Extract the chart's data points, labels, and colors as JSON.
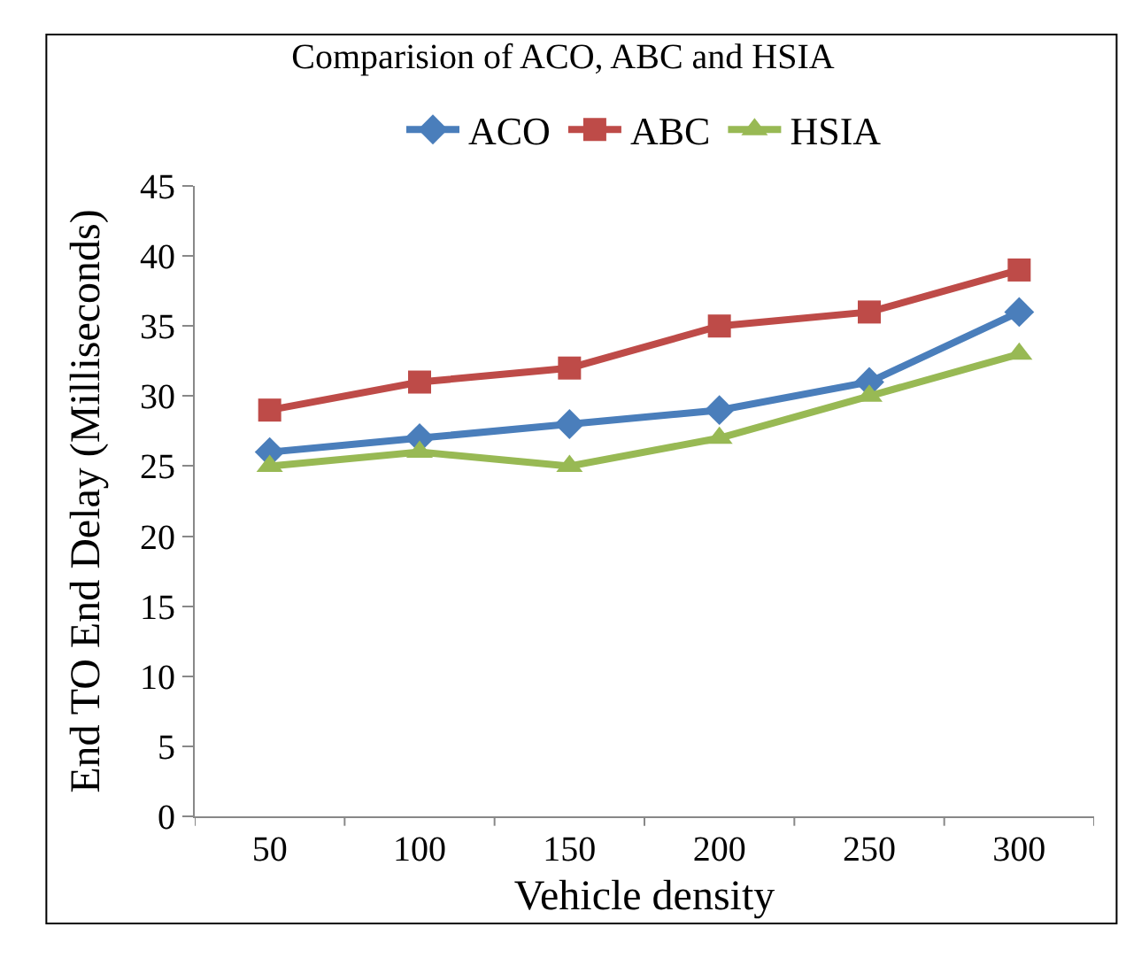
{
  "chart_data": {
    "type": "line",
    "title": "Comparision of ACO, ABC and HSIA",
    "xlabel": "Vehicle density",
    "ylabel": "End TO End Delay (Milliseconds)",
    "categories": [
      "50",
      "100",
      "150",
      "200",
      "250",
      "300"
    ],
    "series": [
      {
        "name": "ACO",
        "color": "#4a7ebb",
        "marker": "diamond",
        "values": [
          26,
          27,
          28,
          29,
          31,
          36
        ]
      },
      {
        "name": "ABC",
        "color": "#be4b48",
        "marker": "square",
        "values": [
          29,
          31,
          32,
          35,
          36,
          39
        ]
      },
      {
        "name": "HSIA",
        "color": "#98b954",
        "marker": "triangle",
        "values": [
          25,
          26,
          25,
          27,
          30,
          33
        ]
      }
    ],
    "ylim": [
      0,
      45
    ],
    "yticks": [
      0,
      5,
      10,
      15,
      20,
      25,
      30,
      35,
      40,
      45
    ],
    "grid": false,
    "legend": "top",
    "line_style": "solid"
  }
}
